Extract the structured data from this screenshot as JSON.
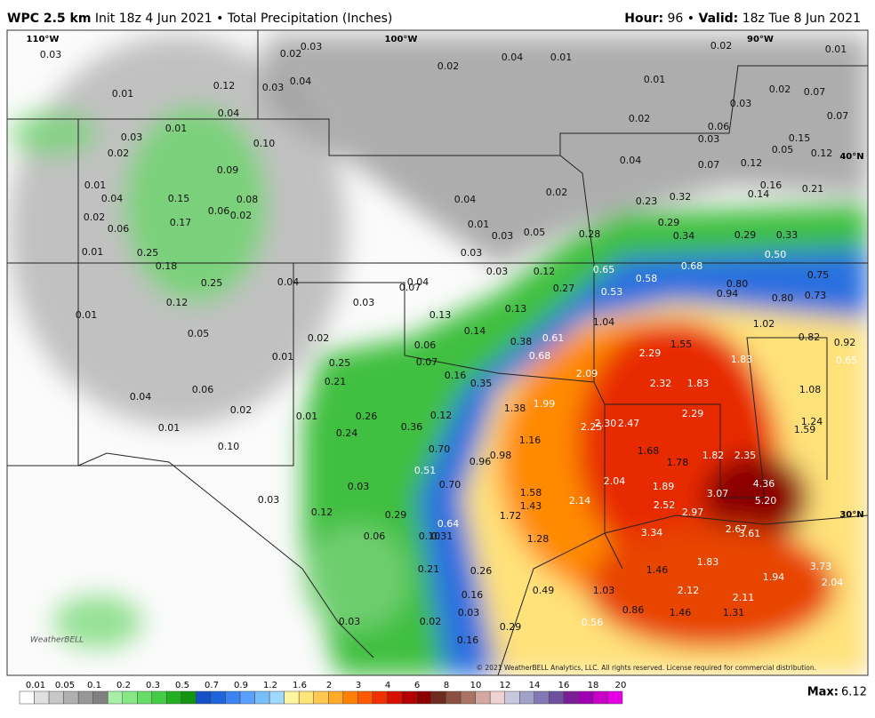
{
  "header": {
    "model": "WPC 2.5 km",
    "init": "Init 18z 4 Jun 2021",
    "separator": "•",
    "product": "Total Precipitation (Inches)",
    "hour_label": "Hour:",
    "hour": "96",
    "valid_label": "Valid:",
    "valid": "18z Tue 8 Jun 2021"
  },
  "map": {
    "lon_labels": [
      "110°W",
      "100°W",
      "90°W"
    ],
    "lat_labels": [
      "40°N",
      "30°N"
    ],
    "amounts": [
      "0.03",
      "0.02",
      "0.03",
      "0.02",
      "0.04",
      "0.01",
      "0.02",
      "0.01",
      "0.01",
      "0.12",
      "0.03",
      "0.04",
      "0.01",
      "0.02",
      "0.07",
      "0.04",
      "0.03",
      "0.07",
      "0.02",
      "0.01",
      "0.03",
      "0.06",
      "0.03",
      "0.10",
      "0.15",
      "0.02",
      "0.05",
      "0.12",
      "0.04",
      "0.07",
      "0.12",
      "0.09",
      "0.01",
      "0.16",
      "0.21",
      "0.02",
      "0.04",
      "0.23",
      "0.32",
      "0.14",
      "0.15",
      "0.08",
      "0.04",
      "0.06",
      "0.02",
      "0.02",
      "0.01",
      "0.03",
      "0.05",
      "0.28",
      "0.29",
      "0.34",
      "0.29",
      "0.33",
      "0.17",
      "0.06",
      "0.01",
      "0.25",
      "0.03",
      "0.50",
      "0.18",
      "0.03",
      "0.12",
      "0.65",
      "0.68",
      "0.58",
      "0.04",
      "0.07",
      "0.04",
      "0.25",
      "0.27",
      "0.53",
      "0.80",
      "0.94",
      "0.75",
      "0.73",
      "0.80",
      "0.12",
      "0.03",
      "0.13",
      "0.13",
      "0.01",
      "1.04",
      "1.02",
      "0.14",
      "0.02",
      "0.05",
      "0.38",
      "0.61",
      "1.55",
      "0.82",
      "0.92",
      "0.06",
      "0.68",
      "2.29",
      "1.83",
      "0.65",
      "0.01",
      "0.25",
      "0.07",
      "0.16",
      "2.09",
      "0.21",
      "0.35",
      "2.32",
      "1.83",
      "1.08",
      "0.06",
      "0.04",
      "1.38",
      "1.99",
      "0.02",
      "0.01",
      "0.26",
      "0.12",
      "2.29",
      "1.24",
      "2.30",
      "2.47",
      "2.25",
      "0.36",
      "1.59",
      "0.01",
      "0.24",
      "1.16",
      "0.10",
      "0.70",
      "1.68",
      "0.98",
      "0.96",
      "1.78",
      "1.82",
      "2.35",
      "0.51",
      "2.04",
      "0.70",
      "1.89",
      "4.36",
      "0.03",
      "1.58",
      "3.07",
      "5.20",
      "0.03",
      "1.43",
      "2.14",
      "2.52",
      "0.12",
      "0.29",
      "1.72",
      "2.97",
      "0.64",
      "2.67",
      "3.61",
      "3.34",
      "0.06",
      "0.31",
      "0.10",
      "1.28",
      "0.21",
      "0.26",
      "1.83",
      "1.46",
      "3.73",
      "1.94",
      "2.04",
      "0.49",
      "1.03",
      "2.12",
      "0.16",
      "2.11",
      "0.86",
      "1.46",
      "1.31",
      "0.03",
      "0.03",
      "0.02",
      "0.56",
      "0.29",
      "0.16"
    ],
    "copyright": "© 2021 WeatherBELL Analytics, LLC. All rights reserved. License required for commercial distribution.",
    "logo": "WeatherBELL"
  },
  "legend": {
    "ticks": [
      "0.01",
      "0.05",
      "0.1",
      "0.2",
      "0.3",
      "0.5",
      "0.7",
      "0.9",
      "1.2",
      "1.6",
      "2",
      "3",
      "4",
      "6",
      "8",
      "10",
      "12",
      "14",
      "16",
      "18",
      "20"
    ],
    "colors": [
      "#ffffff",
      "#e0e0e0",
      "#c8c8c8",
      "#b0b0b0",
      "#989898",
      "#808080",
      "#a8f0a8",
      "#88e888",
      "#66dd66",
      "#44cc44",
      "#22b022",
      "#129412",
      "#1450c8",
      "#1e64dc",
      "#3c82f0",
      "#5aa0ff",
      "#78bef8",
      "#a0d8ff",
      "#fff5a0",
      "#ffe678",
      "#ffc850",
      "#ffaa28",
      "#ff8000",
      "#ff5a00",
      "#f03000",
      "#d81000",
      "#b40000",
      "#8c0000",
      "#6e2a1e",
      "#8c5040",
      "#aa7464",
      "#d2a8a0",
      "#f0d2d2",
      "#c8c8dc",
      "#a0a0c8",
      "#8278b4",
      "#6e50a0",
      "#7a1e96",
      "#a000b4",
      "#c800c8",
      "#e600e6"
    ],
    "max_label": "Max:",
    "max": "6.12"
  }
}
